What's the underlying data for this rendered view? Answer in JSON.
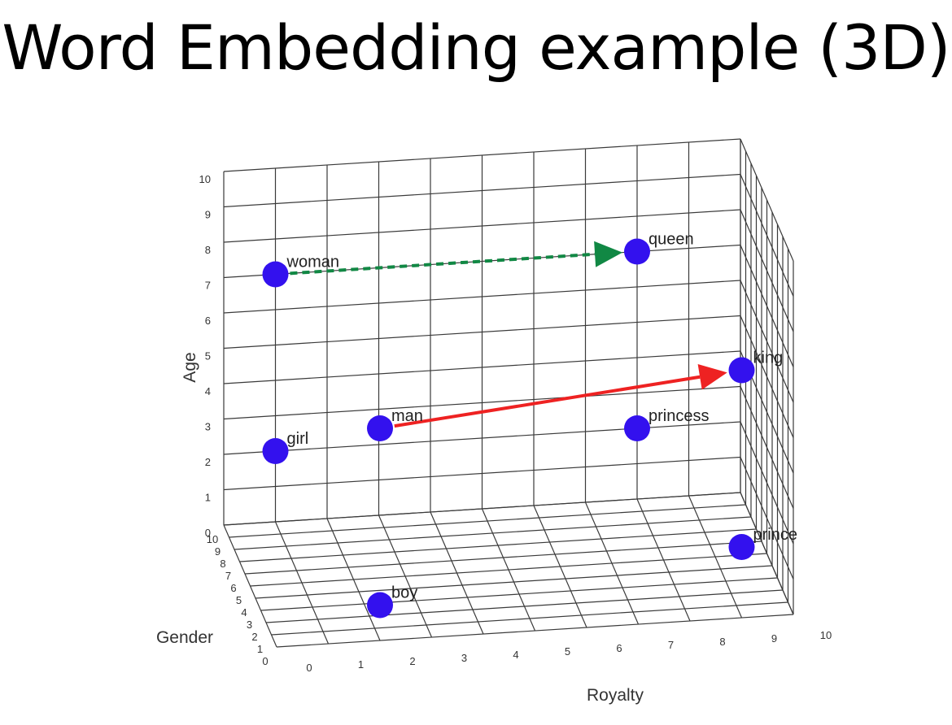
{
  "title": "Word Embedding example (3D)",
  "chart_data": {
    "type": "scatter",
    "dimensions": 3,
    "xlabel": "Royalty",
    "ylabel": "Gender",
    "zlabel": "Age",
    "xlim": [
      0,
      10
    ],
    "ylim": [
      0,
      10
    ],
    "zlim": [
      0,
      10
    ],
    "xticks": [
      "0",
      "1",
      "2",
      "3",
      "4",
      "5",
      "6",
      "7",
      "8",
      "9",
      "10"
    ],
    "yticks": [
      "0",
      "1",
      "2",
      "3",
      "4",
      "5",
      "6",
      "7",
      "8",
      "9",
      "10"
    ],
    "zticks": [
      "0",
      "1",
      "2",
      "3",
      "4",
      "5",
      "6",
      "7",
      "8",
      "9",
      "10"
    ],
    "grid": true,
    "marker_color": "#3311ee",
    "points": [
      {
        "label": "woman",
        "royalty": 1,
        "gender": 10,
        "age": 7
      },
      {
        "label": "man",
        "royalty": 2,
        "gender": 0,
        "age": 6
      },
      {
        "label": "girl",
        "royalty": 1,
        "gender": 10,
        "age": 2
      },
      {
        "label": "boy",
        "royalty": 2,
        "gender": 0,
        "age": 1
      },
      {
        "label": "queen",
        "royalty": 8,
        "gender": 10,
        "age": 7
      },
      {
        "label": "king",
        "royalty": 9,
        "gender": 0,
        "age": 7
      },
      {
        "label": "princess",
        "royalty": 8,
        "gender": 10,
        "age": 2
      },
      {
        "label": "prince",
        "royalty": 9,
        "gender": 0,
        "age": 2
      }
    ],
    "arrows": [
      {
        "from": "woman",
        "to": "queen",
        "color": "#118844",
        "style": "dashed"
      },
      {
        "from": "man",
        "to": "king",
        "color": "#ee2222",
        "style": "solid"
      }
    ]
  }
}
